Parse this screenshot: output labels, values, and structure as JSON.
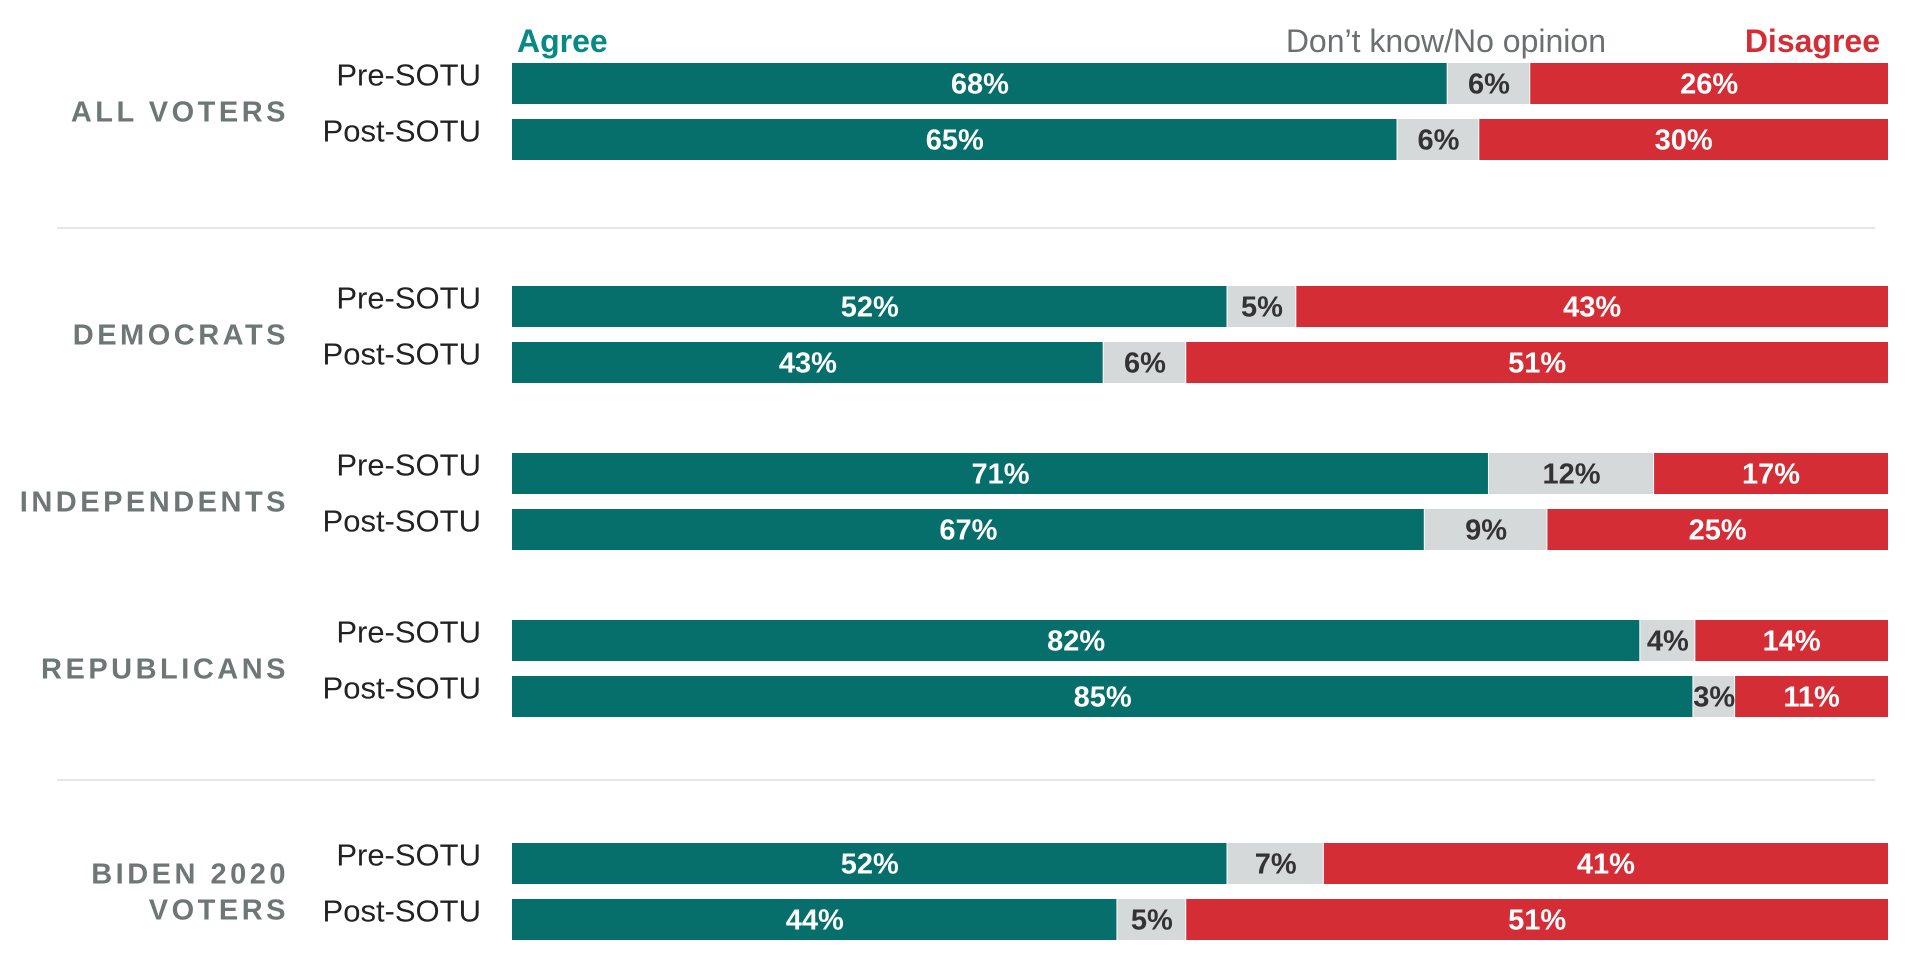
{
  "colors": {
    "agree": "#066e6b",
    "neutral": "#d6d9da",
    "disagree": "#d52d35",
    "agree_legend": "#058a86",
    "neutral_legend": "#6b6f70",
    "group_label": "#6e7676",
    "row_label": "#222222",
    "separator": "#dddddd"
  },
  "chart_data": {
    "type": "bar",
    "orientation": "horizontal-stacked-100",
    "series": [
      {
        "name": "Agree",
        "color": "#066e6b"
      },
      {
        "name": "Don’t know/No opinion",
        "color": "#d6d9da"
      },
      {
        "name": "Disagree",
        "color": "#d52d35"
      }
    ],
    "legend_placement": "top",
    "xlim": [
      0,
      100
    ],
    "value_suffix": "%",
    "groups": [
      {
        "name": "ALL VOTERS",
        "rows": [
          {
            "label": "Pre-SOTU",
            "values": [
              68,
              6,
              26
            ]
          },
          {
            "label": "Post-SOTU",
            "values": [
              65,
              6,
              30
            ]
          }
        ]
      },
      {
        "name": "DEMOCRATS",
        "rows": [
          {
            "label": "Pre-SOTU",
            "values": [
              52,
              5,
              43
            ]
          },
          {
            "label": "Post-SOTU",
            "values": [
              43,
              6,
              51
            ]
          }
        ]
      },
      {
        "name": "INDEPENDENTS",
        "rows": [
          {
            "label": "Pre-SOTU",
            "values": [
              71,
              12,
              17
            ]
          },
          {
            "label": "Post-SOTU",
            "values": [
              67,
              9,
              25
            ]
          }
        ]
      },
      {
        "name": "REPUBLICANS",
        "rows": [
          {
            "label": "Pre-SOTU",
            "values": [
              82,
              4,
              14
            ]
          },
          {
            "label": "Post-SOTU",
            "values": [
              85,
              3,
              11
            ]
          }
        ]
      },
      {
        "name": [
          "BIDEN 2020",
          "VOTERS"
        ],
        "rows": [
          {
            "label": "Pre-SOTU",
            "values": [
              52,
              7,
              41
            ]
          },
          {
            "label": "Post-SOTU",
            "values": [
              44,
              5,
              51
            ]
          }
        ]
      }
    ]
  }
}
